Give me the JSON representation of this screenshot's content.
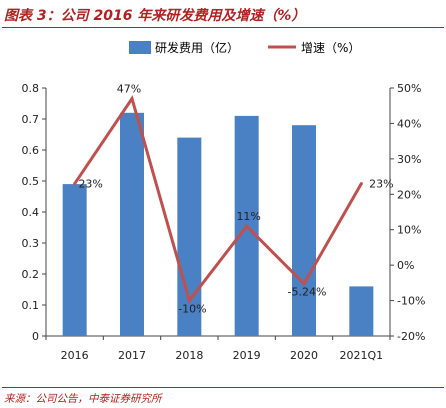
{
  "figure": {
    "title": "图表 3：公司 2016 年来研发费用及增速（%）",
    "source": "来源：公司公告，中泰证券研究所"
  },
  "colors": {
    "bar": "#4a80c4",
    "line": "#c0504d",
    "title": "#b22222",
    "axis": "#444444",
    "text": "#222222"
  },
  "chart_data": {
    "type": "bar",
    "categories": [
      "2016",
      "2017",
      "2018",
      "2019",
      "2020",
      "2021Q1"
    ],
    "series": [
      {
        "name": "研发费用（亿）",
        "type": "bar",
        "axis": "left",
        "values": [
          0.49,
          0.72,
          0.64,
          0.71,
          0.68,
          0.16
        ]
      },
      {
        "name": "增速（%）",
        "type": "line",
        "axis": "right",
        "values": [
          23,
          47,
          -10,
          11,
          -5.24,
          23
        ],
        "labels": [
          "23%",
          "47%",
          "-10%",
          "11%",
          "-5.24%",
          "23%"
        ]
      }
    ],
    "ylim_left": [
      0,
      0.8
    ],
    "yticks_left": [
      "0",
      "0.1",
      "0.2",
      "0.3",
      "0.4",
      "0.5",
      "0.6",
      "0.7",
      "0.8"
    ],
    "ylim_right": [
      -20,
      50
    ],
    "yticks_right": [
      "-20%",
      "-10%",
      "0%",
      "10%",
      "20%",
      "30%",
      "40%",
      "50%"
    ],
    "legend": "top-center",
    "grid": false
  }
}
